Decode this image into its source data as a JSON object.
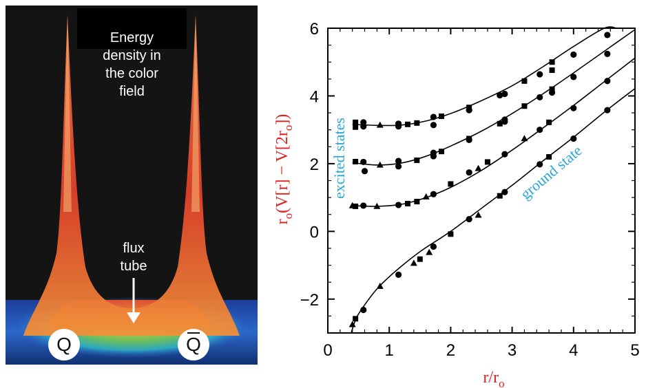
{
  "left_panel": {
    "title_lines": [
      "Energy",
      "density in",
      "the color",
      "field"
    ],
    "flux_lines": [
      "flux",
      "tube"
    ],
    "quark_label": "Q",
    "antiquark_label": "Q"
  },
  "chart_data": {
    "type": "line",
    "xlabel": "r/r",
    "xlabel_sub": "o",
    "ylabel_parts": [
      "r",
      "o",
      "(V[r] − V[2r",
      "o",
      "])"
    ],
    "xlim": [
      0,
      5
    ],
    "ylim": [
      -3,
      6
    ],
    "xticks": [
      0,
      1,
      2,
      3,
      4,
      5
    ],
    "yticks": [
      -2,
      0,
      2,
      4,
      6
    ],
    "ytick_labels": [
      "−2",
      "0",
      "2",
      "4",
      "6"
    ],
    "annotations": [
      {
        "text": "excited states",
        "color": "#2aa6d6"
      },
      {
        "text": "ground state",
        "color": "#2aa6d6"
      }
    ],
    "series": [
      {
        "curve": [
          [
            0.38,
            -3.0
          ],
          [
            0.45,
            -2.62
          ],
          [
            0.55,
            -2.3
          ],
          [
            0.8,
            -1.7
          ],
          [
            1.1,
            -1.18
          ],
          [
            1.5,
            -0.6
          ],
          [
            2.0,
            0.0
          ],
          [
            2.5,
            0.68
          ],
          [
            3.0,
            1.36
          ],
          [
            3.5,
            2.08
          ],
          [
            4.0,
            2.78
          ],
          [
            4.5,
            3.52
          ],
          [
            5.0,
            4.22
          ]
        ],
        "points": [
          {
            "x": 0.4,
            "y": -2.75,
            "m": "tri"
          },
          {
            "x": 0.45,
            "y": -2.58,
            "m": "sq"
          },
          {
            "x": 0.58,
            "y": -2.32,
            "m": "circ"
          },
          {
            "x": 0.85,
            "y": -1.62,
            "m": "tri"
          },
          {
            "x": 1.15,
            "y": -1.28,
            "m": "circ"
          },
          {
            "x": 1.4,
            "y": -0.94,
            "m": "tri"
          },
          {
            "x": 1.5,
            "y": -0.82,
            "m": "sq"
          },
          {
            "x": 1.65,
            "y": -0.62,
            "m": "tri"
          },
          {
            "x": 1.72,
            "y": -0.45,
            "m": "circ"
          },
          {
            "x": 2.0,
            "y": -0.08,
            "m": "sq"
          },
          {
            "x": 2.3,
            "y": 0.36,
            "m": "circ"
          },
          {
            "x": 2.45,
            "y": 0.48,
            "m": "tri"
          },
          {
            "x": 2.8,
            "y": 1.05,
            "m": "sq"
          },
          {
            "x": 2.88,
            "y": 1.16,
            "m": "circ"
          },
          {
            "x": 3.45,
            "y": 1.98,
            "m": "circ"
          },
          {
            "x": 3.6,
            "y": 2.2,
            "m": "sq"
          },
          {
            "x": 4.0,
            "y": 2.74,
            "m": "circ"
          },
          {
            "x": 4.55,
            "y": 3.58,
            "m": "circ"
          }
        ]
      },
      {
        "curve": [
          [
            0.4,
            0.76
          ],
          [
            0.8,
            0.74
          ],
          [
            1.2,
            0.8
          ],
          [
            1.6,
            1.0
          ],
          [
            2.0,
            1.3
          ],
          [
            2.5,
            1.8
          ],
          [
            3.0,
            2.4
          ],
          [
            3.5,
            3.05
          ],
          [
            4.0,
            3.72
          ],
          [
            4.5,
            4.42
          ],
          [
            5.0,
            5.12
          ]
        ],
        "points": [
          {
            "x": 0.4,
            "y": 0.76,
            "m": "tri"
          },
          {
            "x": 0.45,
            "y": 0.74,
            "m": "sq"
          },
          {
            "x": 0.58,
            "y": 0.76,
            "m": "circ"
          },
          {
            "x": 0.8,
            "y": 0.74,
            "m": "tri"
          },
          {
            "x": 1.15,
            "y": 0.78,
            "m": "circ"
          },
          {
            "x": 1.3,
            "y": 0.82,
            "m": "sq"
          },
          {
            "x": 1.45,
            "y": 0.88,
            "m": "sq"
          },
          {
            "x": 1.6,
            "y": 1.02,
            "m": "tri"
          },
          {
            "x": 1.72,
            "y": 1.1,
            "m": "circ"
          },
          {
            "x": 2.0,
            "y": 1.4,
            "m": "sq"
          },
          {
            "x": 2.3,
            "y": 1.74,
            "m": "circ"
          },
          {
            "x": 2.45,
            "y": 1.86,
            "m": "tri"
          },
          {
            "x": 2.6,
            "y": 2.05,
            "m": "sq"
          },
          {
            "x": 2.88,
            "y": 2.28,
            "m": "circ"
          },
          {
            "x": 3.2,
            "y": 2.74,
            "m": "tri"
          },
          {
            "x": 3.45,
            "y": 3.0,
            "m": "circ"
          },
          {
            "x": 3.6,
            "y": 3.22,
            "m": "sq"
          },
          {
            "x": 4.0,
            "y": 3.64,
            "m": "circ"
          },
          {
            "x": 4.55,
            "y": 4.44,
            "m": "circ"
          }
        ]
      },
      {
        "curve": [
          [
            0.4,
            2.03
          ],
          [
            0.8,
            1.96
          ],
          [
            1.2,
            2.02
          ],
          [
            1.6,
            2.22
          ],
          [
            2.0,
            2.52
          ],
          [
            2.5,
            2.96
          ],
          [
            3.0,
            3.48
          ],
          [
            3.5,
            4.06
          ],
          [
            4.0,
            4.68
          ],
          [
            4.5,
            5.32
          ],
          [
            5.0,
            5.96
          ]
        ],
        "points": [
          {
            "x": 0.45,
            "y": 2.06,
            "m": "sq"
          },
          {
            "x": 0.58,
            "y": 2.05,
            "m": "circ"
          },
          {
            "x": 0.6,
            "y": 1.78,
            "m": "circ"
          },
          {
            "x": 0.85,
            "y": 1.96,
            "m": "tri"
          },
          {
            "x": 1.15,
            "y": 2.08,
            "m": "circ"
          },
          {
            "x": 1.15,
            "y": 1.92,
            "m": "circ"
          },
          {
            "x": 1.45,
            "y": 2.1,
            "m": "sq"
          },
          {
            "x": 1.72,
            "y": 2.32,
            "m": "circ"
          },
          {
            "x": 1.72,
            "y": 2.22,
            "m": "circ"
          },
          {
            "x": 1.85,
            "y": 2.36,
            "m": "sq"
          },
          {
            "x": 2.3,
            "y": 2.7,
            "m": "circ"
          },
          {
            "x": 2.3,
            "y": 2.74,
            "m": "sq"
          },
          {
            "x": 2.8,
            "y": 3.18,
            "m": "sq"
          },
          {
            "x": 2.88,
            "y": 3.3,
            "m": "circ"
          },
          {
            "x": 2.88,
            "y": 3.24,
            "m": "circ"
          },
          {
            "x": 3.2,
            "y": 3.7,
            "m": "sq"
          },
          {
            "x": 3.45,
            "y": 3.96,
            "m": "circ"
          },
          {
            "x": 3.65,
            "y": 4.2,
            "m": "sq"
          },
          {
            "x": 3.65,
            "y": 4.1,
            "m": "circ"
          },
          {
            "x": 4.0,
            "y": 4.56,
            "m": "circ"
          },
          {
            "x": 4.55,
            "y": 5.24,
            "m": "circ"
          }
        ]
      },
      {
        "curve": [
          [
            0.4,
            3.16
          ],
          [
            0.8,
            3.13
          ],
          [
            1.2,
            3.14
          ],
          [
            1.6,
            3.26
          ],
          [
            2.0,
            3.48
          ],
          [
            2.5,
            3.86
          ],
          [
            3.0,
            4.3
          ],
          [
            3.5,
            4.86
          ],
          [
            4.0,
            5.46
          ],
          [
            4.5,
            6.0
          ],
          [
            4.7,
            6.2
          ]
        ],
        "points": [
          {
            "x": 0.45,
            "y": 3.22,
            "m": "sq"
          },
          {
            "x": 0.45,
            "y": 3.08,
            "m": "sq"
          },
          {
            "x": 0.58,
            "y": 3.22,
            "m": "circ"
          },
          {
            "x": 0.58,
            "y": 3.1,
            "m": "circ"
          },
          {
            "x": 0.85,
            "y": 3.14,
            "m": "tri"
          },
          {
            "x": 1.15,
            "y": 3.18,
            "m": "circ"
          },
          {
            "x": 1.15,
            "y": 3.1,
            "m": "circ"
          },
          {
            "x": 1.3,
            "y": 3.16,
            "m": "sq"
          },
          {
            "x": 1.45,
            "y": 3.2,
            "m": "sq"
          },
          {
            "x": 1.72,
            "y": 3.38,
            "m": "circ"
          },
          {
            "x": 1.72,
            "y": 3.14,
            "m": "circ"
          },
          {
            "x": 1.85,
            "y": 3.4,
            "m": "sq"
          },
          {
            "x": 2.3,
            "y": 3.66,
            "m": "sq"
          },
          {
            "x": 2.3,
            "y": 3.58,
            "m": "circ"
          },
          {
            "x": 2.8,
            "y": 4.02,
            "m": "circ"
          },
          {
            "x": 2.88,
            "y": 4.06,
            "m": "circ"
          },
          {
            "x": 3.2,
            "y": 4.44,
            "m": "sq"
          },
          {
            "x": 3.45,
            "y": 4.64,
            "m": "circ"
          },
          {
            "x": 3.65,
            "y": 5.0,
            "m": "sq"
          },
          {
            "x": 3.65,
            "y": 4.76,
            "m": "sq"
          },
          {
            "x": 4.0,
            "y": 5.22,
            "m": "circ"
          },
          {
            "x": 4.55,
            "y": 5.8,
            "m": "circ"
          }
        ]
      }
    ]
  }
}
